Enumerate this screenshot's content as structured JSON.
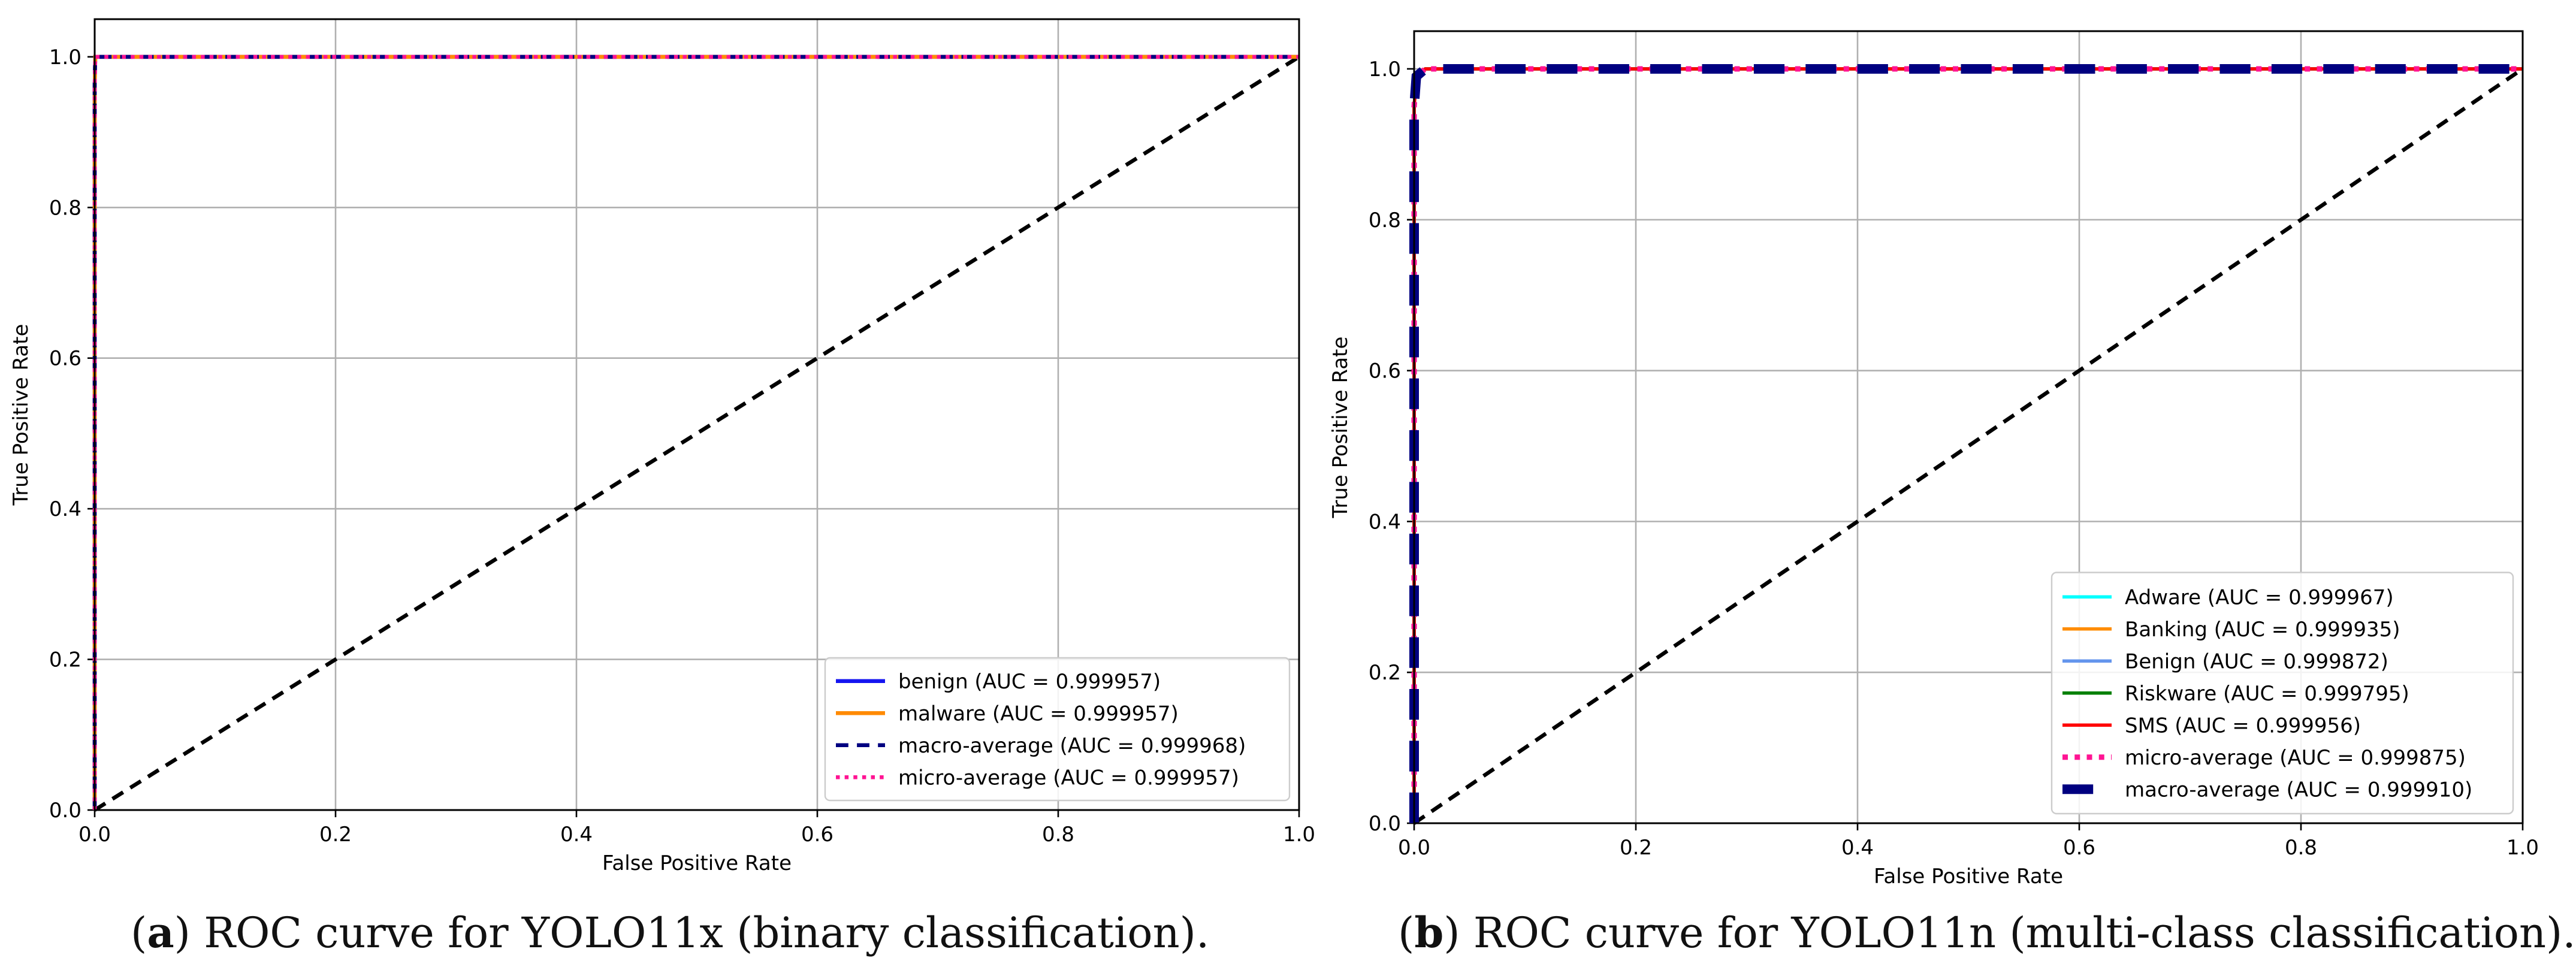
{
  "figure": {
    "captions": [
      {
        "letter": "a",
        "text": ") ROC curve for YOLO11x (binary classification)."
      },
      {
        "letter": "b",
        "text": ") ROC curve for YOLO11n (multi-class classification)."
      }
    ]
  },
  "chart_data": [
    {
      "type": "line",
      "title": "",
      "xlabel": "False Positive Rate",
      "ylabel": "True Positive Rate",
      "xlim": [
        0.0,
        1.0
      ],
      "ylim": [
        0.0,
        1.05
      ],
      "xticks": [
        "0.0",
        "0.2",
        "0.4",
        "0.6",
        "0.8",
        "1.0"
      ],
      "yticks": [
        "0.0",
        "0.2",
        "0.4",
        "0.6",
        "0.8",
        "1.0"
      ],
      "grid": true,
      "legend_position": "lower-right",
      "series": [
        {
          "name": "benign (AUC = 0.999957)",
          "color": "#1515f0",
          "style": "solid",
          "x": [
            0,
            0,
            0.0005,
            1
          ],
          "y": [
            0,
            0.96,
            1,
            1
          ]
        },
        {
          "name": "malware (AUC = 0.999957)",
          "color": "#ff8a00",
          "style": "solid",
          "x": [
            0,
            0,
            0.0005,
            1
          ],
          "y": [
            0,
            0.96,
            1,
            1
          ]
        },
        {
          "name": "macro-average (AUC = 0.999968)",
          "color": "#000080",
          "style": "dashed",
          "x": [
            0,
            0,
            0.0005,
            1
          ],
          "y": [
            0,
            0.97,
            1,
            1
          ]
        },
        {
          "name": "micro-average (AUC = 0.999957)",
          "color": "#ff1493",
          "style": "dotted",
          "x": [
            0,
            0,
            0.0005,
            1
          ],
          "y": [
            0,
            0.96,
            1,
            1
          ]
        }
      ],
      "reference_line": {
        "x": [
          0,
          1
        ],
        "y": [
          0,
          1
        ],
        "color": "#000000",
        "style": "dashed"
      }
    },
    {
      "type": "line",
      "title": "",
      "xlabel": "False Positive Rate",
      "ylabel": "True Positive Rate",
      "xlim": [
        0.0,
        1.0
      ],
      "ylim": [
        0.0,
        1.05
      ],
      "xticks": [
        "0.0",
        "0.2",
        "0.4",
        "0.6",
        "0.8",
        "1.0"
      ],
      "yticks": [
        "0.0",
        "0.2",
        "0.4",
        "0.6",
        "0.8",
        "1.0"
      ],
      "grid": true,
      "legend_position": "lower-right",
      "series": [
        {
          "name": "Adware (AUC = 0.999967)",
          "color": "#00ffff",
          "style": "solid",
          "x": [
            0,
            0,
            0.002,
            0.01,
            1
          ],
          "y": [
            0,
            0.95,
            0.99,
            1,
            1
          ]
        },
        {
          "name": "Banking (AUC = 0.999935)",
          "color": "#ff8c00",
          "style": "solid",
          "x": [
            0,
            0,
            0.002,
            0.01,
            1
          ],
          "y": [
            0,
            0.95,
            0.99,
            1,
            1
          ]
        },
        {
          "name": "Benign (AUC = 0.999872)",
          "color": "#6495ed",
          "style": "solid",
          "x": [
            0,
            0,
            0.002,
            0.01,
            1
          ],
          "y": [
            0,
            0.95,
            0.99,
            1,
            1
          ]
        },
        {
          "name": "Riskware (AUC = 0.999795)",
          "color": "#008000",
          "style": "solid",
          "x": [
            0,
            0,
            0.002,
            0.01,
            1
          ],
          "y": [
            0,
            0.95,
            0.99,
            1,
            1
          ]
        },
        {
          "name": "SMS (AUC = 0.999956)",
          "color": "#ff0000",
          "style": "solid",
          "x": [
            0,
            0,
            0.002,
            0.01,
            1
          ],
          "y": [
            0,
            0.95,
            0.99,
            1,
            1
          ]
        },
        {
          "name": "micro-average (AUC = 0.999875)",
          "color": "#ff1493",
          "style": "dotted",
          "x": [
            0,
            0,
            0.002,
            0.01,
            1
          ],
          "y": [
            0,
            0.95,
            0.99,
            1,
            1
          ]
        },
        {
          "name": "macro-average (AUC = 0.999910)",
          "color": "#000080",
          "style": "dashed",
          "x": [
            0,
            0,
            0.002,
            0.01,
            1
          ],
          "y": [
            0,
            0.95,
            0.99,
            1,
            1
          ]
        }
      ],
      "reference_line": {
        "x": [
          0,
          1
        ],
        "y": [
          0,
          1
        ],
        "color": "#000000",
        "style": "dashed"
      }
    }
  ]
}
